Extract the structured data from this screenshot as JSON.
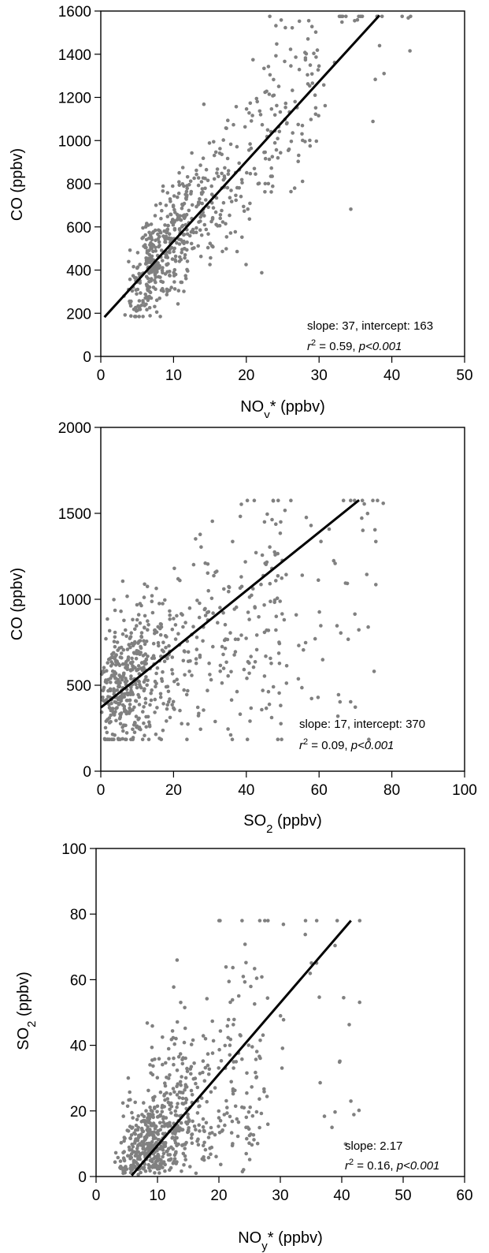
{
  "chart_data": [
    {
      "type": "scatter",
      "xlabel": "NOy* (ppbv)",
      "xlabel_parts": {
        "base": "NO",
        "sub": "y",
        "rest": "* (ppbv)"
      },
      "ylabel": "CO (ppbv)",
      "xlim": [
        0,
        50
      ],
      "ylim": [
        0,
        1600
      ],
      "xticks": [
        0,
        10,
        20,
        30,
        40,
        50
      ],
      "yticks": [
        0,
        200,
        400,
        600,
        800,
        1000,
        1200,
        1400,
        1600
      ],
      "fit": {
        "x": [
          0.5,
          38.3
        ],
        "y": [
          182,
          1580
        ]
      },
      "annotation": {
        "line1": "slope: 37, intercept: 163",
        "r": "r",
        "r_sup": "2",
        "r_rest": " = 0.59, ",
        "p": "p<0.001"
      },
      "point_count": 650,
      "x_range": [
        2,
        43.5
      ],
      "y_range": [
        185,
        1575
      ],
      "point_color": "#808080"
    },
    {
      "type": "scatter",
      "xlabel": "SO2 (ppbv)",
      "xlabel_parts": {
        "base": "SO",
        "sub": "2",
        "rest": " (ppbv)"
      },
      "ylabel": "CO (ppbv)",
      "xlim": [
        0,
        100
      ],
      "ylim": [
        0,
        2000
      ],
      "xticks": [
        0,
        20,
        40,
        60,
        80,
        100
      ],
      "yticks": [
        0,
        500,
        1000,
        1500,
        2000
      ],
      "fit": {
        "x": [
          0,
          71
        ],
        "y": [
          370,
          1577
        ]
      },
      "annotation": {
        "line1": "slope: 17, intercept: 370",
        "r": "r",
        "r_sup": "2",
        "r_rest": " = 0.09, ",
        "p": "p<0.001"
      },
      "point_count": 700,
      "x_range": [
        0,
        78
      ],
      "y_range": [
        185,
        1575
      ],
      "point_color": "#808080"
    },
    {
      "type": "scatter",
      "xlabel": "NOy* (ppbv)",
      "xlabel_parts": {
        "base": "NO",
        "sub": "y",
        "rest": "* (ppbv)"
      },
      "ylabel": "SO2 (ppbv)",
      "ylabel_parts": {
        "base": "SO",
        "sub": "2",
        "rest": " (ppbv)"
      },
      "xlim": [
        0,
        60
      ],
      "ylim": [
        0,
        100
      ],
      "xticks": [
        0,
        10,
        20,
        30,
        40,
        50,
        60
      ],
      "yticks": [
        0,
        20,
        40,
        60,
        80,
        100
      ],
      "fit": {
        "x": [
          5.8,
          41.5
        ],
        "y": [
          0.3,
          78
        ]
      },
      "annotation": {
        "line1": "slope: 2.17",
        "r": "r",
        "r_sup": "2",
        "r_rest": " = 0.16, ",
        "p": "p<0.001"
      },
      "point_count": 700,
      "x_range": [
        2,
        43
      ],
      "y_range": [
        0,
        78
      ],
      "point_color": "#808080"
    }
  ]
}
